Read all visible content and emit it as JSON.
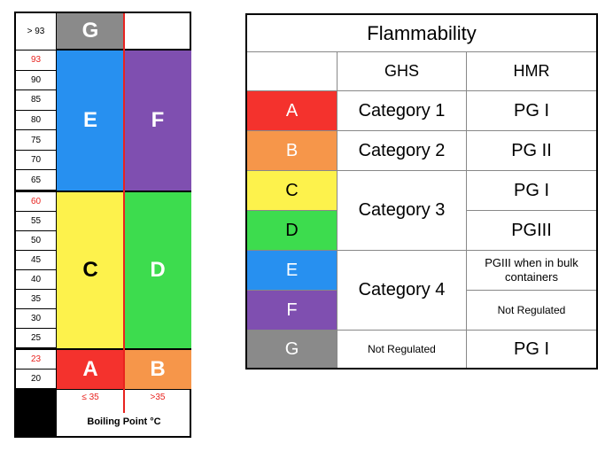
{
  "chart": {
    "top_label": "> 93",
    "y_ticks": [
      "93",
      "90",
      "85",
      "80",
      "75",
      "70",
      "65",
      "60",
      "55",
      "50",
      "45",
      "40",
      "35",
      "30",
      "25",
      "23",
      "20"
    ],
    "zones": {
      "A": "A",
      "B": "B",
      "C": "C",
      "D": "D",
      "E": "E",
      "F": "F",
      "G": "G"
    },
    "x_left": "≤ 35",
    "x_right": ">35",
    "x_title": "Boiling Point °C"
  },
  "table": {
    "title": "Flammability",
    "col_ghs": "GHS",
    "col_hmr": "HMR",
    "rows": [
      {
        "letter": "A",
        "color": "#f4322d"
      },
      {
        "letter": "B",
        "color": "#f6964a"
      },
      {
        "letter": "C",
        "color": "#fdf24c"
      },
      {
        "letter": "D",
        "color": "#3ddc4e"
      },
      {
        "letter": "E",
        "color": "#2790f0"
      },
      {
        "letter": "F",
        "color": "#7f4fb0"
      },
      {
        "letter": "G",
        "color": "#8a8a8a"
      }
    ],
    "ghs": {
      "cat1": "Category 1",
      "cat2": "Category 2",
      "cat3": "Category 3",
      "cat4": "Category 4",
      "not_reg": "Not Regulated"
    },
    "hmr": {
      "A": "PG I",
      "B": "PG II",
      "C": "PG I",
      "D": "PGIII",
      "E": "PGIII when in bulk containers",
      "F": "Not Regulated",
      "G": "PG I"
    }
  },
  "colors": {
    "red": "#e8231f",
    "black": "#000000"
  }
}
